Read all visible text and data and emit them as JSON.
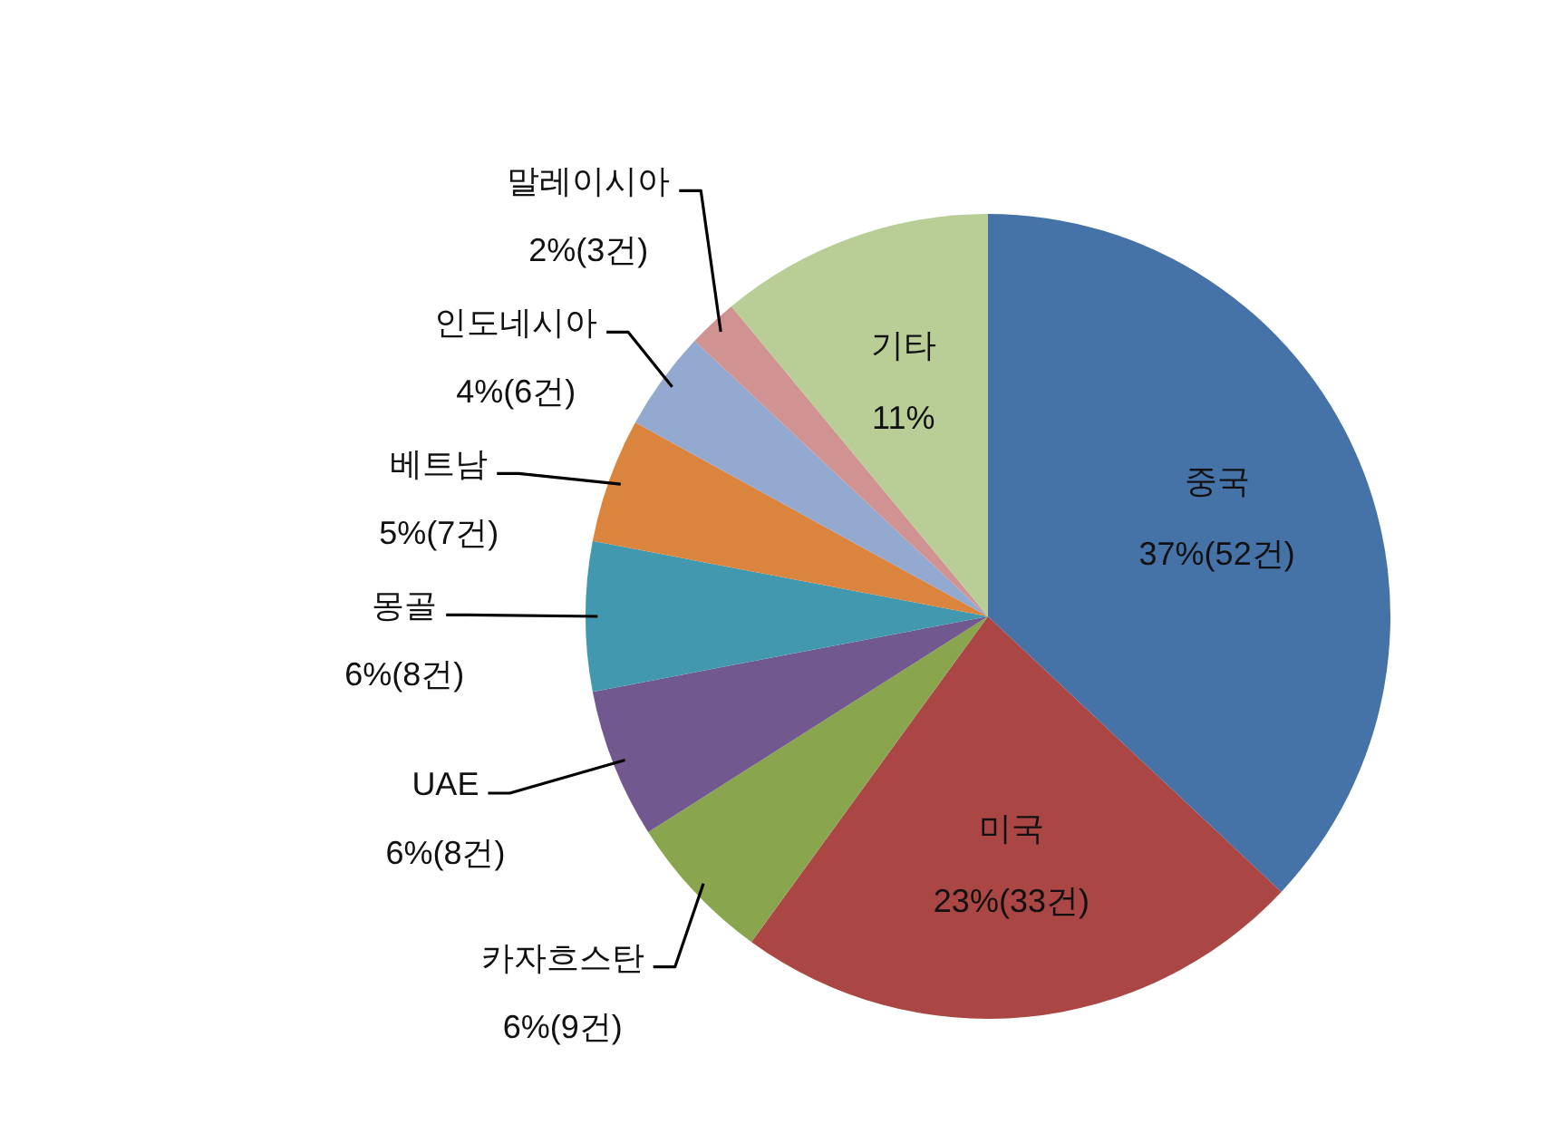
{
  "chart_data": {
    "type": "pie",
    "categories": [
      "중국",
      "미국",
      "카자흐스탄",
      "UAE",
      "몽골",
      "베트남",
      "인도네시아",
      "말레이시아",
      "기타"
    ],
    "values": [
      37,
      23,
      6,
      6,
      6,
      5,
      4,
      2,
      11
    ],
    "colors": [
      "#4572a7",
      "#aa4643",
      "#89a54e",
      "#71588f",
      "#4198af",
      "#db843d",
      "#93a9cf",
      "#d19392",
      "#b9cd96"
    ],
    "value_labels": [
      "37%(52건)",
      "23%(33건)",
      "6%(9건)",
      "6%(8건)",
      "6%(8건)",
      "5%(7건)",
      "4%(6건)",
      "2%(3건)",
      "11%"
    ]
  }
}
